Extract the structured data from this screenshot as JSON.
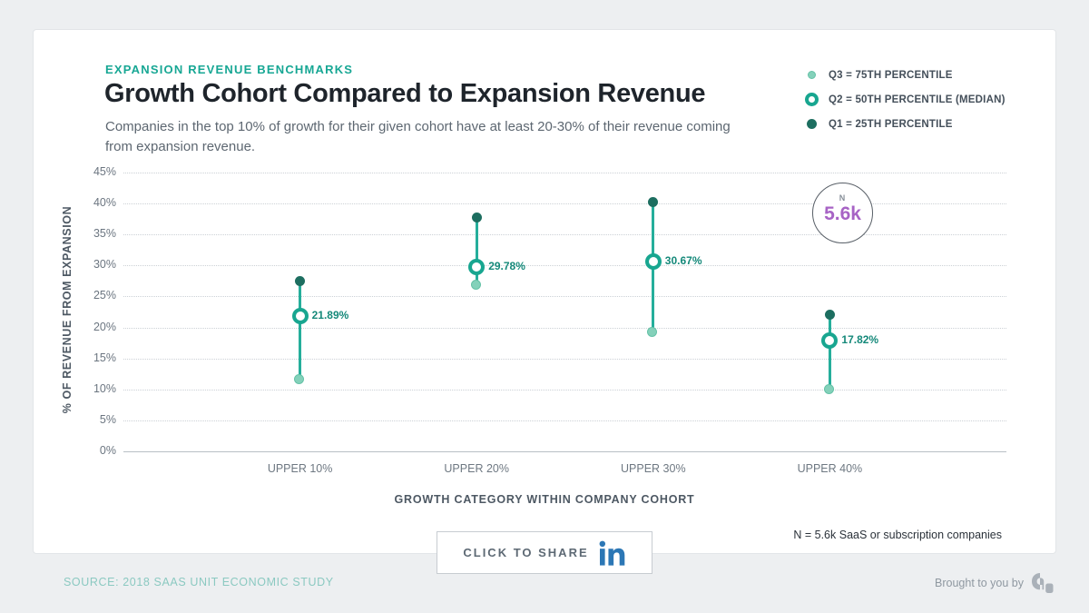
{
  "header": {
    "eyebrow": "EXPANSION REVENUE BENCHMARKS",
    "title": "Growth Cohort Compared to Expansion Revenue",
    "subtitle": "Companies in the top 10% of growth for their given cohort have at least 20-30% of their revenue coming from expansion revenue."
  },
  "legend": {
    "items": [
      {
        "id": "q3",
        "marker": "small-light-green-dot",
        "label": "Q3 = 75TH PERCENTILE"
      },
      {
        "id": "q2",
        "marker": "teal-ring",
        "label": "Q2 = 50TH PERCENTILE (MEDIAN)"
      },
      {
        "id": "q1",
        "marker": "dark-teal-dot",
        "label": "Q1 = 25TH PERCENTILE"
      }
    ]
  },
  "chart_data": {
    "type": "dumbbell-range (vertical line with quartile dots per category)",
    "categories": [
      "UPPER 10%",
      "UPPER 20%",
      "UPPER 30%",
      "UPPER 40%"
    ],
    "series": [
      {
        "name": "range top (dark dot, Q1 = 25TH PERCENTILE color)",
        "values": [
          27.5,
          37.8,
          40.3,
          22.1
        ]
      },
      {
        "name": "median (ring, Q2 = 50TH PERCENTILE)",
        "values": [
          21.89,
          29.78,
          30.67,
          17.82
        ]
      },
      {
        "name": "range bottom (light dot, Q3 = 75TH PERCENTILE color)",
        "values": [
          11.5,
          26.8,
          19.1,
          9.9
        ]
      }
    ],
    "median_labels": [
      "21.89%",
      "29.78%",
      "30.67%",
      "17.82%"
    ],
    "title": "Growth Cohort Compared to Expansion Revenue",
    "xlabel": "GROWTH CATEGORY WITHIN COMPANY COHORT",
    "ylabel": "% OF REVENUE FROM EXPANSION",
    "ylim": [
      0,
      45
    ],
    "ytick_step": 5,
    "ytick_suffix": "%",
    "grid": "dotted horizontal lines, solid zero line, legend top-right"
  },
  "annotation_badge": {
    "label": "N",
    "value": "5.6k"
  },
  "footnote": "N = 5.6k SaaS or subscription companies",
  "share_button": {
    "label": "CLICK TO SHARE",
    "icon": "linkedin"
  },
  "footer": {
    "source": "SOURCE: 2018 SAAS UNIT ECONOMIC STUDY",
    "brought_by": "Brought to you by"
  },
  "colors": {
    "accent_teal": "#17a794",
    "line": "#25ae9b",
    "q1_dark_dot": "#1d6e60",
    "q3_light_dot": "#84d1ba",
    "median_ring": "#18a690",
    "value_label": "#15897a",
    "n_value_purple": "#a763c5",
    "linkedin_blue": "#2c77b5",
    "source_teal": "#8bc9c1"
  }
}
